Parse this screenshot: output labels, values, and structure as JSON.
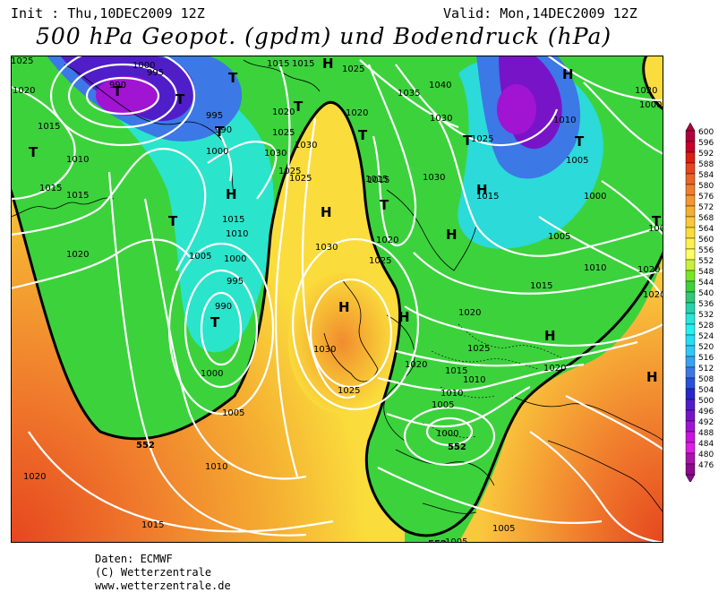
{
  "header": {
    "init": "Init : Thu,10DEC2009 12Z",
    "valid": "Valid: Mon,14DEC2009 12Z",
    "title": "500 hPa Geopot. (gpdm) und Bodendruck (hPa)"
  },
  "legend": {
    "levels": [
      600,
      596,
      592,
      588,
      584,
      580,
      576,
      572,
      568,
      564,
      560,
      556,
      552,
      548,
      544,
      540,
      536,
      532,
      528,
      524,
      520,
      516,
      512,
      508,
      504,
      500,
      496,
      492,
      488,
      484,
      480,
      476
    ],
    "colors": [
      "#b0003c",
      "#c80028",
      "#dc1e14",
      "#e6461e",
      "#eb6428",
      "#f07d2d",
      "#f59632",
      "#f5af32",
      "#fac83c",
      "#fadc3c",
      "#fff050",
      "#ffff64",
      "#c8f03c",
      "#78e628",
      "#3cd23c",
      "#32c878",
      "#28d2aa",
      "#28e6dc",
      "#28f0f0",
      "#28dcf5",
      "#32c8f5",
      "#3ca0f0",
      "#3c78e6",
      "#2850dc",
      "#2828c8",
      "#501ec8",
      "#7814c8",
      "#a014d2",
      "#c814dc",
      "#dc1ee6",
      "#aa14aa",
      "#8c0a8c"
    ]
  },
  "map": {
    "pressure_labels": [
      "1025",
      "1020",
      "1015",
      "1010",
      "1015",
      "1015",
      "1020",
      "1000",
      "995",
      "990",
      "995",
      "1000",
      "990",
      "1015",
      "1010",
      "1005",
      "1000",
      "995",
      "990",
      "1000",
      "1005",
      "1010",
      "1015",
      "1020",
      "1030",
      "1025",
      "1025",
      "1030",
      "1020",
      "1025",
      "1030",
      "1015",
      "1015",
      "1025",
      "1035",
      "1040",
      "1030",
      "1025",
      "1030",
      "1020",
      "1015",
      "1020",
      "1010",
      "1005",
      "1000",
      "1005",
      "1010",
      "1015",
      "1020",
      "1025",
      "1010",
      "1010",
      "1015",
      "1025",
      "1020",
      "1015",
      "1005",
      "1005",
      "1005",
      "1015",
      "1020",
      "1000",
      "1030",
      "1025",
      "1005",
      "1020",
      "1020",
      "1020",
      "1000"
    ],
    "contour_labels": [
      "552",
      "552",
      "552"
    ],
    "highs": [
      "H",
      "H",
      "H",
      "H",
      "H",
      "H",
      "H",
      "H",
      "H",
      "H"
    ],
    "lows": [
      "T",
      "T",
      "T",
      "T",
      "T",
      "T",
      "T",
      "T",
      "T",
      "T",
      "T",
      "T",
      "T"
    ]
  },
  "credits": {
    "line1": "Daten: ECMWF",
    "line2": "(C) Wetterzentrale",
    "line3": "www.wetterzentrale.de"
  }
}
